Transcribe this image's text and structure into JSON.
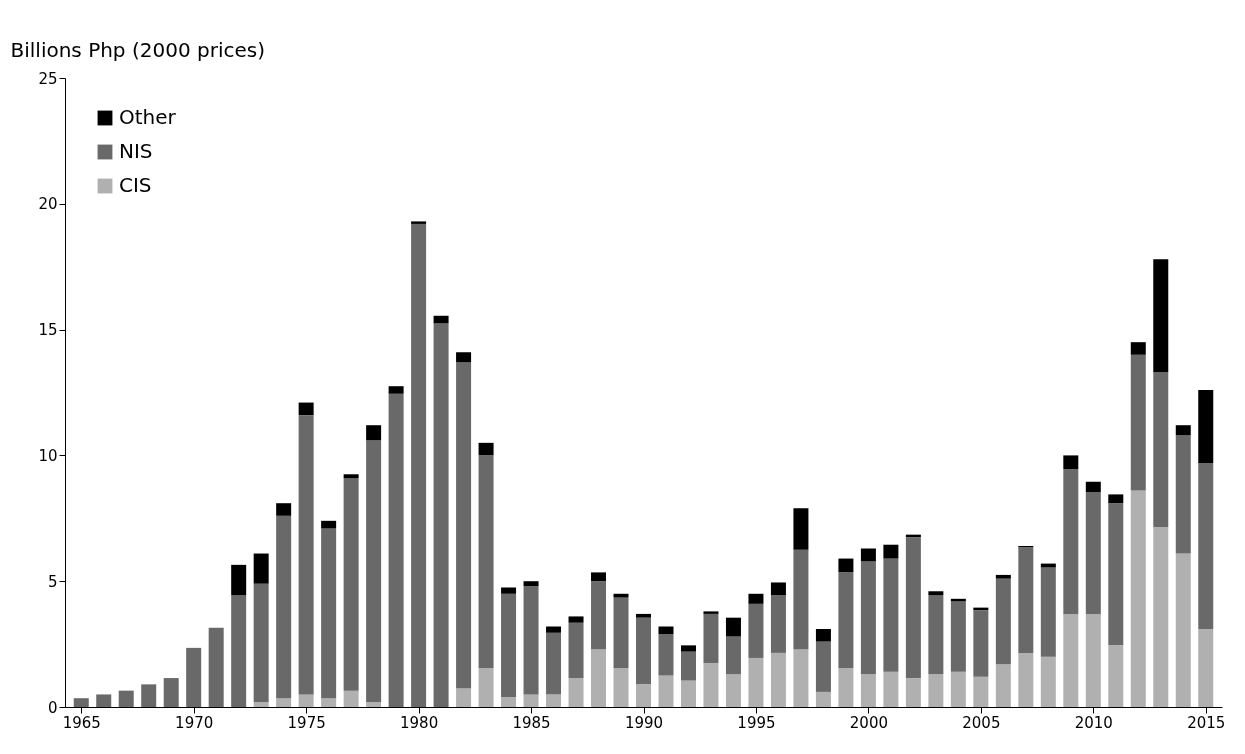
{
  "chart_data": {
    "type": "bar",
    "stacked": true,
    "ylabel": "Billions Php (2000 prices)",
    "x": [
      1965,
      1966,
      1967,
      1968,
      1969,
      1970,
      1971,
      1972,
      1973,
      1974,
      1975,
      1976,
      1977,
      1978,
      1979,
      1980,
      1981,
      1982,
      1983,
      1984,
      1985,
      1986,
      1987,
      1988,
      1989,
      1990,
      1991,
      1992,
      1993,
      1994,
      1995,
      1996,
      1997,
      1998,
      1999,
      2000,
      2001,
      2002,
      2003,
      2004,
      2005,
      2006,
      2007,
      2008,
      2009,
      2010,
      2011,
      2012,
      2013,
      2014,
      2015
    ],
    "series": [
      {
        "name": "CIS",
        "color": "#b0b0b0",
        "values": [
          0,
          0,
          0,
          0,
          null,
          null,
          null,
          null,
          0.2,
          0.35,
          0.5,
          0.35,
          0.65,
          0.2,
          null,
          0,
          null,
          0.75,
          1.55,
          0.4,
          0.5,
          0.5,
          1.15,
          2.3,
          1.55,
          0.9,
          1.25,
          1.05,
          1.75,
          1.3,
          1.95,
          2.15,
          2.3,
          0.6,
          1.55,
          1.3,
          1.4,
          1.15,
          1.3,
          1.4,
          1.2,
          1.7,
          2.15,
          2.0,
          3.7,
          3.7,
          2.45,
          8.6,
          7.15,
          6.1,
          3.1
        ]
      },
      {
        "name": "NIS",
        "color": "#696969",
        "values": [
          0.35,
          0.5,
          0.65,
          0.9,
          1.15,
          2.35,
          3.15,
          4.45,
          4.7,
          7.25,
          11.1,
          6.75,
          8.45,
          10.4,
          12.45,
          19.2,
          15.25,
          12.95,
          8.45,
          4.1,
          4.3,
          2.45,
          2.2,
          2.7,
          2.8,
          2.65,
          1.65,
          1.15,
          1.95,
          1.5,
          2.15,
          2.3,
          3.95,
          2.0,
          3.8,
          4.5,
          4.5,
          5.6,
          3.15,
          2.8,
          2.65,
          3.4,
          4.2,
          3.55,
          5.75,
          4.85,
          5.65,
          5.4,
          6.15,
          4.7,
          6.6
        ]
      },
      {
        "name": "Other",
        "color": "#000000",
        "values": [
          0,
          0,
          0,
          0,
          0,
          0,
          0,
          1.2,
          1.2,
          0.5,
          0.5,
          0.3,
          0.15,
          0.6,
          0.3,
          0.1,
          0.3,
          0.4,
          0.5,
          0.25,
          0.2,
          0.25,
          0.25,
          0.35,
          0.15,
          0.15,
          0.3,
          0.25,
          0.1,
          0.75,
          0.4,
          0.5,
          1.65,
          0.5,
          0.55,
          0.5,
          0.55,
          0.1,
          0.15,
          0.1,
          0.1,
          0.15,
          0.05,
          0.15,
          0.55,
          0.4,
          0.35,
          0.5,
          4.5,
          0.4,
          2.9
        ]
      }
    ],
    "xlim": [
      1964.5,
      2015.5
    ],
    "xticks": [
      1965,
      1970,
      1975,
      1980,
      1985,
      1990,
      1995,
      2000,
      2005,
      2010,
      2015
    ],
    "ylim": [
      0,
      25
    ],
    "yticks": [
      0,
      5,
      10,
      15,
      20,
      25
    ],
    "grid": false,
    "legend": "top left"
  }
}
